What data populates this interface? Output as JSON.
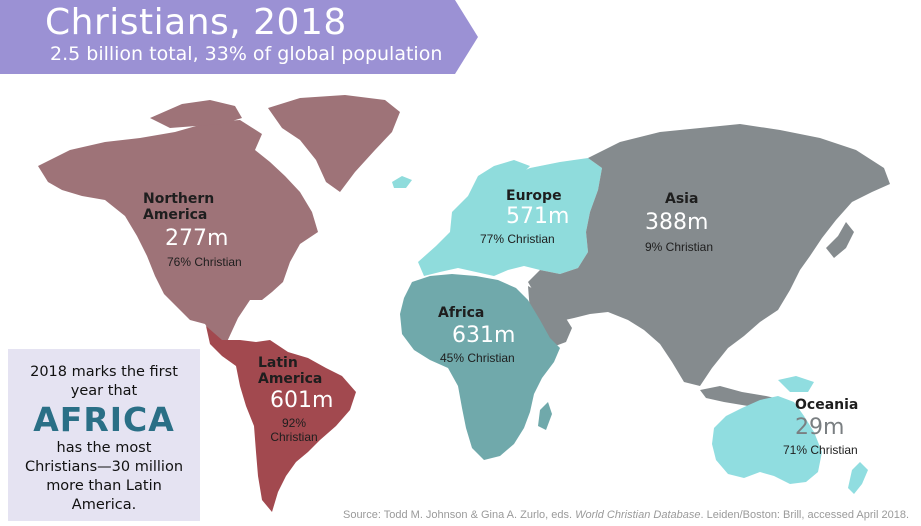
{
  "header": {
    "title": "Christians, 2018",
    "subtitle": "2.5 billion total, 33% of global population",
    "banner_color": "#9b91d4"
  },
  "regions": {
    "northern_america": {
      "name": "Northern\nAmerica",
      "count": "277m",
      "percent": "76% Christian",
      "color": "#9e7378"
    },
    "latin_america": {
      "name": "Latin\nAmerica",
      "count": "601m",
      "percent": "92%\nChristian",
      "color": "#a2494f"
    },
    "europe": {
      "name": "Europe",
      "count": "571m",
      "percent": "77% Christian",
      "color": "#8fdcdc"
    },
    "africa": {
      "name": "Africa",
      "count": "631m",
      "percent": "45% Christian",
      "color": "#70a9ab"
    },
    "asia": {
      "name": "Asia",
      "count": "388m",
      "percent": "9% Christian",
      "color": "#858b8e"
    },
    "oceania": {
      "name": "Oceania",
      "count": "29m",
      "percent": "71% Christian",
      "color": "#90dde0"
    }
  },
  "callout": {
    "line1": "2018 marks the first",
    "line2": "year that",
    "highlight": "AFRICA",
    "line3": "has the most",
    "line4": "Christians—30 million",
    "line5": "more than Latin",
    "line6": "America."
  },
  "source": {
    "prefix": "Source: Todd M. Johnson & Gina A. Zurlo, eds. ",
    "italic": "World Christian Database",
    "suffix": ". Leiden/Boston: Brill, accessed April 2018."
  }
}
